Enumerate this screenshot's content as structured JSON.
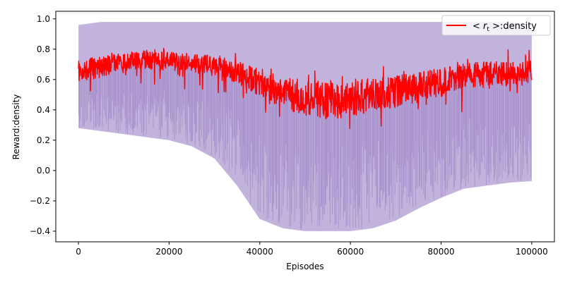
{
  "chart_data": {
    "type": "line",
    "xlabel": "Episodes",
    "ylabel": "Reward:density",
    "xlim": [
      -5000,
      105000
    ],
    "ylim": [
      -0.47,
      1.05
    ],
    "x_ticks": [
      0,
      20000,
      40000,
      60000,
      80000,
      100000
    ],
    "x_tick_labels": [
      "0",
      "20000",
      "40000",
      "60000",
      "80000",
      "100000"
    ],
    "y_ticks": [
      -0.4,
      -0.2,
      0.0,
      0.2,
      0.4,
      0.6,
      0.8,
      1.0
    ],
    "y_tick_labels": [
      "−0.4",
      "−0.2",
      "0.0",
      "0.2",
      "0.4",
      "0.6",
      "0.8",
      "1.0"
    ],
    "grid": false,
    "legend": {
      "position": "top-right",
      "label_prefix": "< ",
      "label_var": "r",
      "label_sub": "t",
      "label_suffix": " >:density"
    },
    "colors": {
      "mean_line": "#ff0000",
      "band": "#b7a6d6",
      "band_dense": "#9f88c6"
    },
    "series": [
      {
        "role": "mean",
        "x": [
          0,
          5000,
          10000,
          15000,
          20000,
          25000,
          30000,
          35000,
          40000,
          45000,
          50000,
          55000,
          60000,
          65000,
          70000,
          75000,
          80000,
          85000,
          90000,
          95000,
          100000
        ],
        "values": [
          0.66,
          0.68,
          0.72,
          0.73,
          0.72,
          0.71,
          0.69,
          0.65,
          0.58,
          0.52,
          0.48,
          0.46,
          0.47,
          0.5,
          0.52,
          0.55,
          0.58,
          0.62,
          0.64,
          0.64,
          0.65
        ]
      },
      {
        "role": "upper_band",
        "x": [
          0,
          5000,
          10000,
          15000,
          20000,
          25000,
          30000,
          35000,
          40000,
          45000,
          50000,
          55000,
          60000,
          65000,
          70000,
          75000,
          80000,
          85000,
          90000,
          95000,
          100000
        ],
        "values": [
          0.96,
          0.98,
          0.98,
          0.98,
          0.98,
          0.98,
          0.98,
          0.98,
          0.98,
          0.98,
          0.98,
          0.98,
          0.98,
          0.98,
          0.98,
          0.98,
          0.98,
          0.98,
          0.98,
          0.98,
          0.96
        ]
      },
      {
        "role": "lower_band",
        "x": [
          0,
          5000,
          10000,
          15000,
          20000,
          25000,
          30000,
          35000,
          40000,
          45000,
          50000,
          55000,
          60000,
          65000,
          70000,
          75000,
          80000,
          85000,
          90000,
          95000,
          100000
        ],
        "values": [
          0.28,
          0.26,
          0.24,
          0.22,
          0.2,
          0.16,
          0.08,
          -0.1,
          -0.32,
          -0.38,
          -0.4,
          -0.4,
          -0.4,
          -0.38,
          -0.33,
          -0.25,
          -0.18,
          -0.12,
          -0.1,
          -0.08,
          -0.07
        ]
      }
    ]
  }
}
